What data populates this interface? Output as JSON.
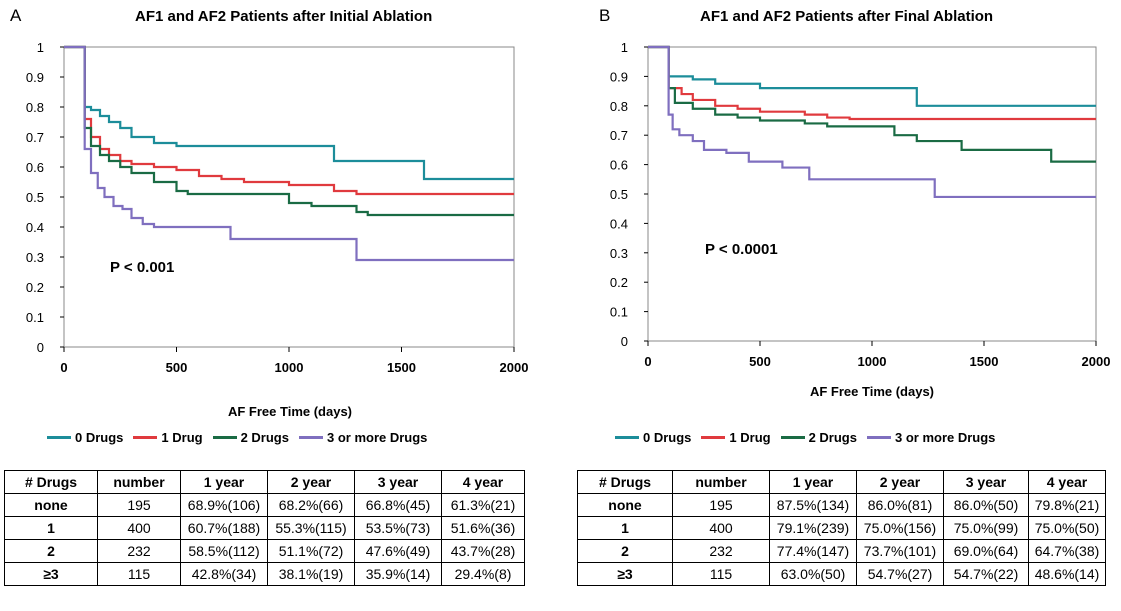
{
  "colors": {
    "drugs0": "#1c8d9a",
    "drugs1": "#e03a3e",
    "drugs2": "#1a6b44",
    "drugs3": "#7f6fbf"
  },
  "panelA": {
    "label": "A",
    "title": "AF1 and AF2 Patients after Initial Ablation",
    "pvalue": "P < 0.001",
    "xlabel": "AF Free Time (days)",
    "legend": [
      "0 Drugs",
      "1 Drug",
      "2 Drugs",
      "3 or more Drugs"
    ],
    "table": {
      "headers": [
        "# Drugs",
        "number",
        "1 year",
        "2 year",
        "3 year",
        "4 year"
      ],
      "rows": [
        [
          "none",
          "195",
          "68.9%(106)",
          "68.2%(66)",
          "66.8%(45)",
          "61.3%(21)"
        ],
        [
          "1",
          "400",
          "60.7%(188)",
          "55.3%(115)",
          "53.5%(73)",
          "51.6%(36)"
        ],
        [
          "2",
          "232",
          "58.5%(112)",
          "51.1%(72)",
          "47.6%(49)",
          "43.7%(28)"
        ],
        [
          "≥3",
          "115",
          "42.8%(34)",
          "38.1%(19)",
          "35.9%(14)",
          "29.4%(8)"
        ]
      ]
    }
  },
  "panelB": {
    "label": "B",
    "title": "AF1 and AF2 Patients after Final  Ablation",
    "pvalue": "P < 0.0001",
    "xlabel": "AF Free Time (days)",
    "legend": [
      "0 Drugs",
      "1 Drug",
      "2 Drugs",
      "3 or more Drugs"
    ],
    "table": {
      "headers": [
        "# Drugs",
        "number",
        "1 year",
        "2 year",
        "3 year",
        "4 year"
      ],
      "rows": [
        [
          "none",
          "195",
          "87.5%(134)",
          "86.0%(81)",
          "86.0%(50)",
          "79.8%(21)"
        ],
        [
          "1",
          "400",
          "79.1%(239)",
          "75.0%(156)",
          "75.0%(99)",
          "75.0%(50)"
        ],
        [
          "2",
          "232",
          "77.4%(147)",
          "73.7%(101)",
          "69.0%(64)",
          "64.7%(38)"
        ],
        [
          "≥3",
          "115",
          "63.0%(50)",
          "54.7%(27)",
          "54.7%(22)",
          "48.6%(14)"
        ]
      ]
    }
  },
  "chart_data": [
    {
      "type": "line",
      "title": "AF1 and AF2 Patients after Initial Ablation",
      "xlabel": "AF Free Time (days)",
      "ylabel": "",
      "xlim": [
        0,
        2000
      ],
      "ylim": [
        0,
        1
      ],
      "xticks": [
        "0",
        "500",
        "1000",
        "1500",
        "2000"
      ],
      "yticks": [
        "0",
        "0.1",
        "0.2",
        "0.3",
        "0.4",
        "0.5",
        "0.6",
        "0.7",
        "0.8",
        "0.9",
        "1"
      ],
      "annotation": "P < 0.001",
      "legend_position": "bottom",
      "series": [
        {
          "name": "0 Drugs",
          "color": "#1c8d9a",
          "points": [
            [
              0,
              1
            ],
            [
              90,
              1
            ],
            [
              92,
              0.8
            ],
            [
              120,
              0.79
            ],
            [
              160,
              0.77
            ],
            [
              200,
              0.75
            ],
            [
              250,
              0.73
            ],
            [
              300,
              0.7
            ],
            [
              400,
              0.68
            ],
            [
              500,
              0.67
            ],
            [
              700,
              0.67
            ],
            [
              1180,
              0.67
            ],
            [
              1200,
              0.62
            ],
            [
              1580,
              0.62
            ],
            [
              1600,
              0.56
            ],
            [
              2000,
              0.56
            ]
          ]
        },
        {
          "name": "1 Drug",
          "color": "#e03a3e",
          "points": [
            [
              0,
              1
            ],
            [
              90,
              1
            ],
            [
              92,
              0.76
            ],
            [
              120,
              0.7
            ],
            [
              160,
              0.66
            ],
            [
              200,
              0.64
            ],
            [
              250,
              0.62
            ],
            [
              300,
              0.61
            ],
            [
              400,
              0.6
            ],
            [
              500,
              0.59
            ],
            [
              600,
              0.57
            ],
            [
              700,
              0.56
            ],
            [
              800,
              0.55
            ],
            [
              1000,
              0.54
            ],
            [
              1200,
              0.52
            ],
            [
              1300,
              0.51
            ],
            [
              2000,
              0.51
            ]
          ]
        },
        {
          "name": "2 Drugs",
          "color": "#1a6b44",
          "points": [
            [
              0,
              1
            ],
            [
              90,
              1
            ],
            [
              92,
              0.73
            ],
            [
              120,
              0.67
            ],
            [
              160,
              0.64
            ],
            [
              200,
              0.62
            ],
            [
              250,
              0.6
            ],
            [
              300,
              0.58
            ],
            [
              400,
              0.55
            ],
            [
              500,
              0.52
            ],
            [
              550,
              0.51
            ],
            [
              900,
              0.51
            ],
            [
              1000,
              0.48
            ],
            [
              1100,
              0.47
            ],
            [
              1300,
              0.45
            ],
            [
              1350,
              0.44
            ],
            [
              2000,
              0.44
            ]
          ]
        },
        {
          "name": "3 or more Drugs",
          "color": "#7f6fbf",
          "points": [
            [
              0,
              1
            ],
            [
              90,
              1
            ],
            [
              92,
              0.66
            ],
            [
              120,
              0.58
            ],
            [
              150,
              0.53
            ],
            [
              180,
              0.5
            ],
            [
              220,
              0.47
            ],
            [
              260,
              0.46
            ],
            [
              300,
              0.43
            ],
            [
              350,
              0.41
            ],
            [
              400,
              0.4
            ],
            [
              700,
              0.4
            ],
            [
              740,
              0.36
            ],
            [
              1280,
              0.36
            ],
            [
              1300,
              0.29
            ],
            [
              2000,
              0.29
            ]
          ]
        }
      ]
    },
    {
      "type": "line",
      "title": "AF1 and AF2 Patients after Final  Ablation",
      "xlabel": "AF Free Time (days)",
      "ylabel": "",
      "xlim": [
        0,
        2000
      ],
      "ylim": [
        0,
        1
      ],
      "xticks": [
        "0",
        "500",
        "1000",
        "1500",
        "2000"
      ],
      "yticks": [
        "0",
        "0.1",
        "0.2",
        "0.3",
        "0.4",
        "0.5",
        "0.6",
        "0.7",
        "0.8",
        "0.9",
        "1"
      ],
      "annotation": "P < 0.0001",
      "legend_position": "bottom",
      "series": [
        {
          "name": "0 Drugs",
          "color": "#1c8d9a",
          "points": [
            [
              0,
              1
            ],
            [
              90,
              1
            ],
            [
              92,
              0.9
            ],
            [
              200,
              0.89
            ],
            [
              300,
              0.875
            ],
            [
              500,
              0.86
            ],
            [
              1180,
              0.86
            ],
            [
              1200,
              0.8
            ],
            [
              2000,
              0.8
            ]
          ]
        },
        {
          "name": "1 Drug",
          "color": "#e03a3e",
          "points": [
            [
              0,
              1
            ],
            [
              90,
              1
            ],
            [
              92,
              0.86
            ],
            [
              150,
              0.84
            ],
            [
              200,
              0.82
            ],
            [
              300,
              0.8
            ],
            [
              400,
              0.79
            ],
            [
              500,
              0.78
            ],
            [
              700,
              0.77
            ],
            [
              800,
              0.76
            ],
            [
              900,
              0.755
            ],
            [
              2000,
              0.755
            ]
          ]
        },
        {
          "name": "2 Drugs",
          "color": "#1a6b44",
          "points": [
            [
              0,
              1
            ],
            [
              90,
              1
            ],
            [
              92,
              0.86
            ],
            [
              120,
              0.81
            ],
            [
              200,
              0.79
            ],
            [
              300,
              0.77
            ],
            [
              400,
              0.76
            ],
            [
              500,
              0.75
            ],
            [
              700,
              0.74
            ],
            [
              800,
              0.73
            ],
            [
              1000,
              0.73
            ],
            [
              1100,
              0.7
            ],
            [
              1200,
              0.68
            ],
            [
              1300,
              0.68
            ],
            [
              1400,
              0.65
            ],
            [
              1780,
              0.65
            ],
            [
              1800,
              0.61
            ],
            [
              2000,
              0.61
            ]
          ]
        },
        {
          "name": "3 or more Drugs",
          "color": "#7f6fbf",
          "points": [
            [
              0,
              1
            ],
            [
              90,
              1
            ],
            [
              92,
              0.77
            ],
            [
              110,
              0.72
            ],
            [
              140,
              0.7
            ],
            [
              200,
              0.68
            ],
            [
              250,
              0.65
            ],
            [
              350,
              0.64
            ],
            [
              450,
              0.61
            ],
            [
              600,
              0.59
            ],
            [
              700,
              0.59
            ],
            [
              720,
              0.55
            ],
            [
              1200,
              0.55
            ],
            [
              1280,
              0.49
            ],
            [
              2000,
              0.49
            ]
          ]
        }
      ]
    }
  ]
}
